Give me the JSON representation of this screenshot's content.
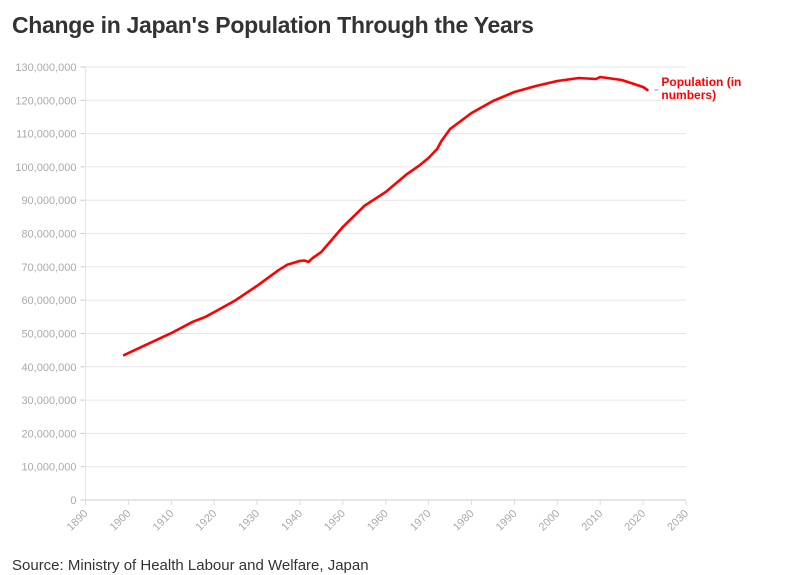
{
  "chart_data": {
    "type": "line",
    "title": "Change in Japan's Population Through the Years",
    "source": "Source: Ministry of Health Labour and Welfare, Japan",
    "xlabel": "",
    "ylabel": "",
    "xlim": [
      1890,
      2030
    ],
    "ylim": [
      0,
      130000000
    ],
    "x_ticks": [
      "1890",
      "1900",
      "1910",
      "1920",
      "1930",
      "1940",
      "1950",
      "1960",
      "1970",
      "1980",
      "1990",
      "2000",
      "2010",
      "2020",
      "2030"
    ],
    "y_ticks": [
      "0",
      "10,000,000",
      "20,000,000",
      "30,000,000",
      "40,000,000",
      "50,000,000",
      "60,000,000",
      "70,000,000",
      "80,000,000",
      "90,000,000",
      "100,000,000",
      "110,000,000",
      "120,000,000",
      "130,000,000"
    ],
    "grid": true,
    "legend": "inline label at line end",
    "series": [
      {
        "name": "Population (in numbers)",
        "color": "#ff0000",
        "x": [
          1899,
          1905,
          1910,
          1915,
          1918,
          1920,
          1925,
          1930,
          1935,
          1937,
          1940,
          1941,
          1942,
          1943,
          1945,
          1947,
          1950,
          1955,
          1960,
          1965,
          1968,
          1970,
          1972,
          1973,
          1975,
          1980,
          1985,
          1990,
          1995,
          2000,
          2005,
          2009,
          2010,
          2015,
          2020,
          2021
        ],
        "y": [
          43500000,
          47100000,
          50100000,
          53500000,
          55000000,
          56400000,
          60000000,
          64300000,
          69000000,
          70600000,
          71800000,
          71900000,
          71500000,
          72700000,
          74500000,
          77500000,
          82000000,
          88300000,
          92500000,
          97900000,
          100600000,
          102700000,
          105400000,
          107800000,
          111400000,
          116200000,
          119800000,
          122500000,
          124300000,
          125800000,
          126700000,
          126400000,
          127000000,
          126100000,
          124000000,
          123100000
        ]
      }
    ]
  }
}
